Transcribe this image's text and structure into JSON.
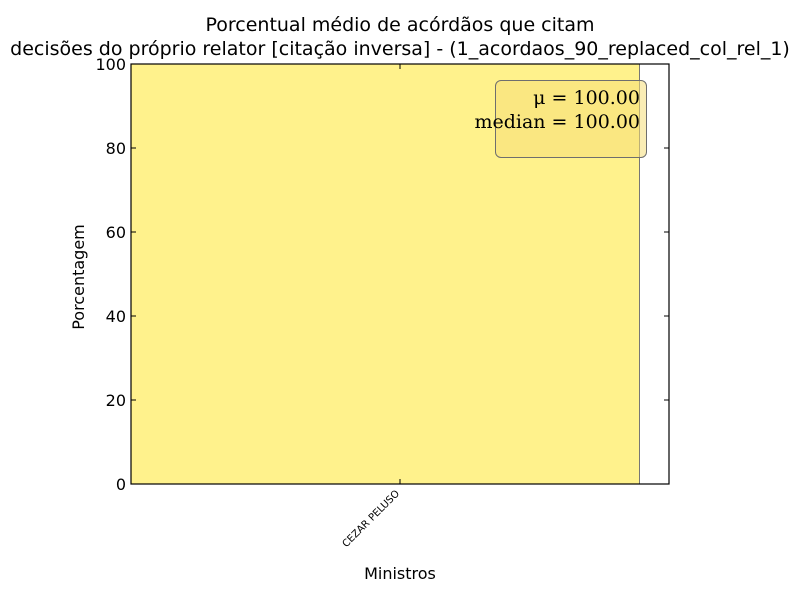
{
  "chart_data": {
    "type": "bar",
    "title_line1": "Porcentual médio de acórdãos que citam",
    "title_line2": "decisões do próprio relator [citação inversa] - (1_acordaos_90_replaced_col_rel_1)",
    "categories": [
      "CEZAR PELUSO"
    ],
    "values": [
      100.0
    ],
    "xlabel": "Ministros",
    "ylabel": "Porcentagem",
    "ylim": [
      0,
      100
    ],
    "yticks": [
      0,
      20,
      40,
      60,
      80,
      100
    ],
    "grid": false,
    "bar_color": "#fff28c",
    "annotation": {
      "placement": "top-right",
      "mu_label": "μ = 100.00",
      "median_label": "median = 100.00"
    }
  }
}
